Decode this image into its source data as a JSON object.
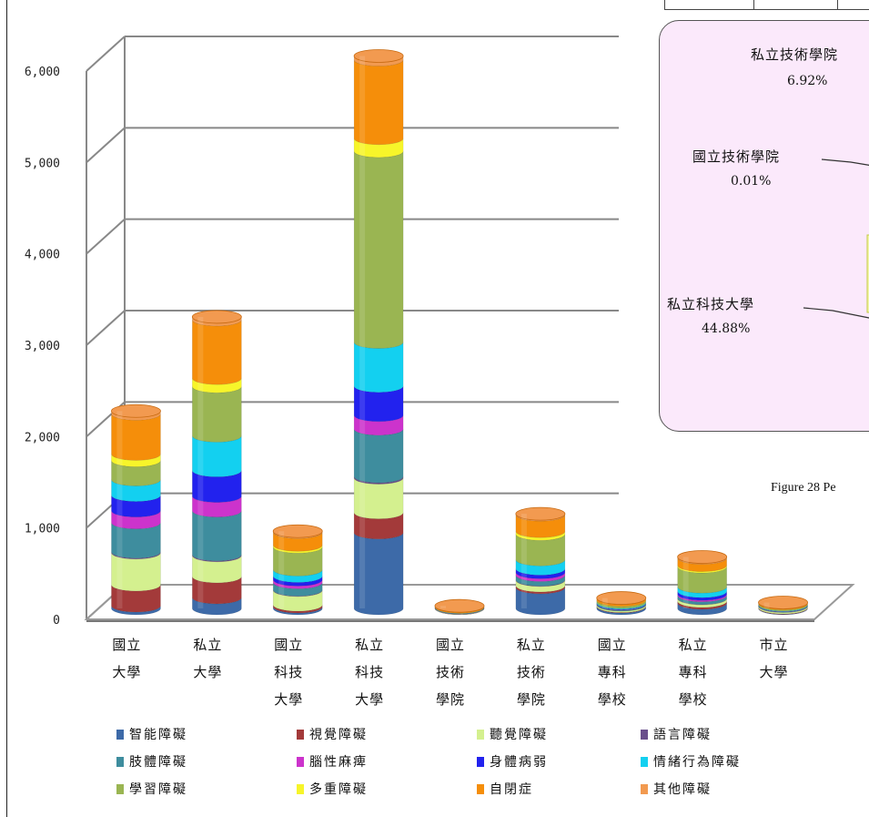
{
  "chart_data": {
    "type": "bar",
    "stacked": true,
    "style": "3d-cylinder",
    "ylim": [
      0,
      6000
    ],
    "yticks": [
      "0",
      "1,000",
      "2,000",
      "3,000",
      "4,000",
      "5,000",
      "6,000"
    ],
    "categories": [
      [
        "國立",
        "大學"
      ],
      [
        "私立",
        "大學"
      ],
      [
        "國立",
        "科技",
        "大學"
      ],
      [
        "私立",
        "科技",
        "大學"
      ],
      [
        "國立",
        "技術",
        "學院"
      ],
      [
        "私立",
        "技術",
        "學院"
      ],
      [
        "國立",
        "專科",
        "學校"
      ],
      [
        "私立",
        "專科",
        "學校"
      ],
      [
        "市立",
        "大學"
      ]
    ],
    "series": [
      {
        "name": "智能障礙",
        "color": "#3d6aa8",
        "values": [
          30,
          120,
          20,
          830,
          0,
          230,
          20,
          60,
          5
        ]
      },
      {
        "name": "視覺障礙",
        "color": "#a33a3a",
        "values": [
          230,
          230,
          20,
          220,
          2,
          20,
          5,
          20,
          5
        ]
      },
      {
        "name": "聽覺障礙",
        "color": "#d4f08f",
        "values": [
          350,
          230,
          160,
          380,
          3,
          60,
          15,
          30,
          15
        ]
      },
      {
        "name": "語言障礙",
        "color": "#6a4f8c",
        "values": [
          10,
          10,
          5,
          15,
          0,
          5,
          1,
          3,
          1
        ]
      },
      {
        "name": "肢體障礙",
        "color": "#3e8d9e",
        "values": [
          320,
          480,
          80,
          520,
          3,
          50,
          10,
          30,
          5
        ]
      },
      {
        "name": "腦性麻痺",
        "color": "#cc33cc",
        "values": [
          130,
          160,
          30,
          150,
          1,
          30,
          3,
          15,
          2
        ]
      },
      {
        "name": "身體病弱",
        "color": "#2222ee",
        "values": [
          170,
          280,
          40,
          320,
          2,
          40,
          5,
          30,
          3
        ]
      },
      {
        "name": "情緒行為障礙",
        "color": "#13d0f0",
        "values": [
          170,
          380,
          70,
          480,
          2,
          100,
          10,
          50,
          5
        ]
      },
      {
        "name": "學習障礙",
        "color": "#9ab552",
        "values": [
          210,
          540,
          250,
          2090,
          3,
          280,
          20,
          220,
          10
        ]
      },
      {
        "name": "多重障礙",
        "color": "#f7f52a",
        "values": [
          70,
          90,
          20,
          140,
          1,
          30,
          3,
          15,
          3
        ]
      },
      {
        "name": "自閉症",
        "color": "#f58e0a",
        "values": [
          440,
          640,
          140,
          860,
          10,
          180,
          20,
          80,
          10
        ]
      },
      {
        "name": "其他障礙",
        "color": "#f29a50",
        "values": [
          30,
          30,
          10,
          40,
          1,
          10,
          2,
          10,
          1
        ]
      }
    ],
    "legend_position": "bottom",
    "grid": true
  },
  "pie_panel": {
    "labels": [
      {
        "name": "私立技術學院",
        "pct": "6.92%"
      },
      {
        "name": "國立技術學院",
        "pct": "0.01%"
      },
      {
        "name": "私立科技大學",
        "pct": "44.88%"
      }
    ],
    "visible_text": "私立技術學院",
    "caption": "Figure 28 Pe",
    "colors": {
      "panel_bg": "#fbe9fb",
      "slice_edge": "#e7ec6a"
    }
  }
}
